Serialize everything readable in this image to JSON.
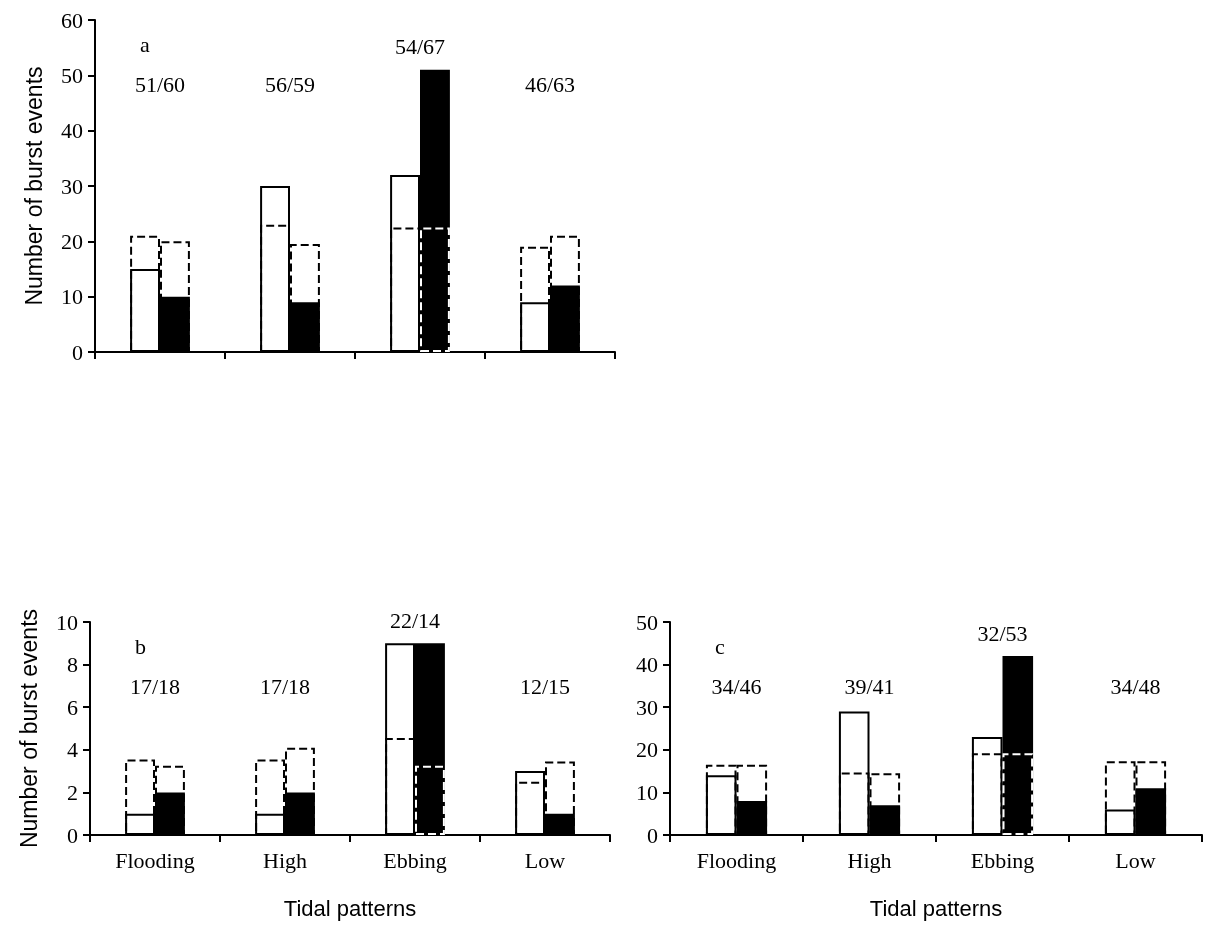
{
  "chart_data": [
    {
      "type": "bar",
      "title": "a",
      "ylabel": "Number of burst events",
      "categories": [
        null,
        null,
        null,
        null
      ],
      "ylim": [
        0,
        60
      ],
      "yticks": [
        0,
        10,
        20,
        30,
        40,
        50,
        60
      ],
      "tick_labels": "y",
      "series": [
        {
          "color": "#ffffff",
          "values": [
            15,
            30,
            32,
            9
          ]
        },
        {
          "color": "#000000",
          "line_style": "dashed",
          "values": [
            21,
            23,
            22.5,
            19
          ]
        },
        {
          "color": "#000000",
          "values": [
            10,
            9,
            51,
            12
          ]
        },
        {
          "color": "#000000",
          "colors": [
            "#000000",
            "#000000",
            "#ffffff",
            "#000000"
          ],
          "line_style": "dashed",
          "values": [
            20,
            19.5,
            22.5,
            21
          ]
        }
      ],
      "annotations": [
        "51/60",
        "56/59",
        "54/67",
        "46/63"
      ]
    },
    {
      "type": "bar",
      "title": "b",
      "ylabel": "Number of burst events",
      "xlabel": "Tidal patterns",
      "categories": [
        "Flooding",
        "High",
        "Ebbing",
        "Low"
      ],
      "ylim": [
        0,
        10
      ],
      "yticks": [
        0,
        2,
        4,
        6,
        8,
        10
      ],
      "series": [
        {
          "color": "#ffffff",
          "values": [
            1,
            1,
            9,
            3
          ]
        },
        {
          "color": "#000000",
          "line_style": "dashed",
          "values": [
            3.55,
            3.55,
            4.55,
            2.5
          ]
        },
        {
          "color": "#000000",
          "values": [
            2,
            2,
            9,
            1
          ]
        },
        {
          "color": "#000000",
          "colors": [
            "#000000",
            "#000000",
            "#ffffff",
            "#000000"
          ],
          "line_style": "dashed",
          "values": [
            3.25,
            4.1,
            3.25,
            3.45
          ]
        }
      ],
      "annotations": [
        "17/18",
        "17/18",
        "22/14",
        "12/15"
      ]
    },
    {
      "type": "bar",
      "title": "c",
      "xlabel": "Tidal patterns",
      "categories": [
        "Flooding",
        "High",
        "Ebbing",
        "Low"
      ],
      "ylim": [
        0,
        50
      ],
      "yticks": [
        0,
        10,
        20,
        30,
        40,
        50
      ],
      "series": [
        {
          "color": "#ffffff",
          "values": [
            14,
            29,
            23,
            6
          ]
        },
        {
          "color": "#000000",
          "line_style": "dashed",
          "values": [
            16.5,
            14.7,
            19.2,
            17.3
          ]
        },
        {
          "color": "#000000",
          "values": [
            8,
            7,
            42,
            11
          ]
        },
        {
          "color": "#000000",
          "colors": [
            "#000000",
            "#000000",
            "#ffffff",
            "#000000"
          ],
          "line_style": "dashed",
          "values": [
            16.5,
            14.5,
            19.2,
            17.3
          ]
        }
      ],
      "annotations": [
        "34/46",
        "39/41",
        "32/53",
        "34/48"
      ]
    }
  ]
}
